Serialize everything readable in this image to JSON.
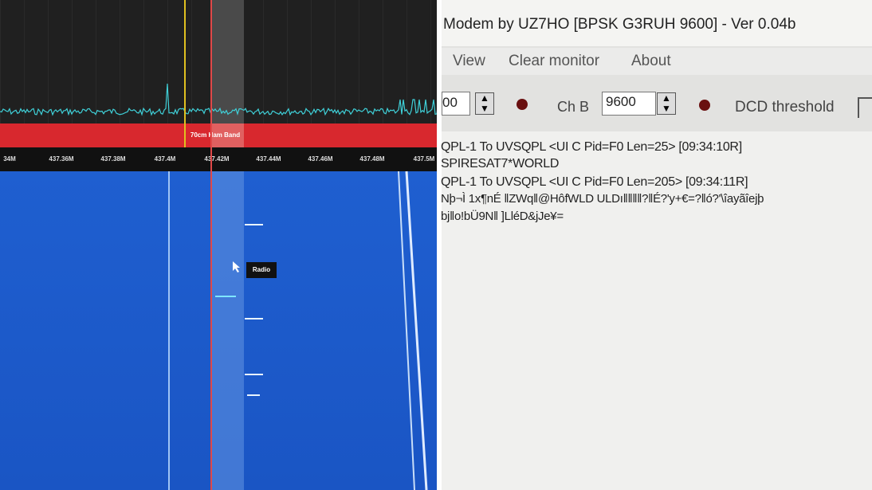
{
  "sdr": {
    "band_label": "70cm Ham Band",
    "frequencies": [
      "34M",
      "437.36M",
      "437.38M",
      "437.4M",
      "437.42M",
      "437.44M",
      "437.46M",
      "437.48M",
      "437.5M"
    ],
    "tooltip": "Radio"
  },
  "modem": {
    "title": "Modem by UZ7HO [BPSK G3RUH 9600] - Ver 0.04b",
    "menu": [
      "View",
      "Clear monitor",
      "About"
    ],
    "toolbar": {
      "channel_a_value": "00",
      "channel_b_label": "Ch B",
      "channel_b_value": "9600",
      "dcd_label": "DCD threshold"
    },
    "monitor": [
      "QPL-1 To UVSQPL <UI C Pid=F0 Len=25> [09:34:10R]",
      "SPIRESAT7*WORLD",
      "QPL-1 To UVSQPL <UI C Pid=F0 Len=205> [09:34:11R]",
      "Nþ¬Ì 1x¶nÉ ‖ZWq‖@HôfWLD ULDı‖‖‖‖?‖É?'y+€=?‖ó?'\\îayãîejþ",
      "bj‖o!bÜ9N‖ ]LléD&jJe¥="
    ]
  }
}
